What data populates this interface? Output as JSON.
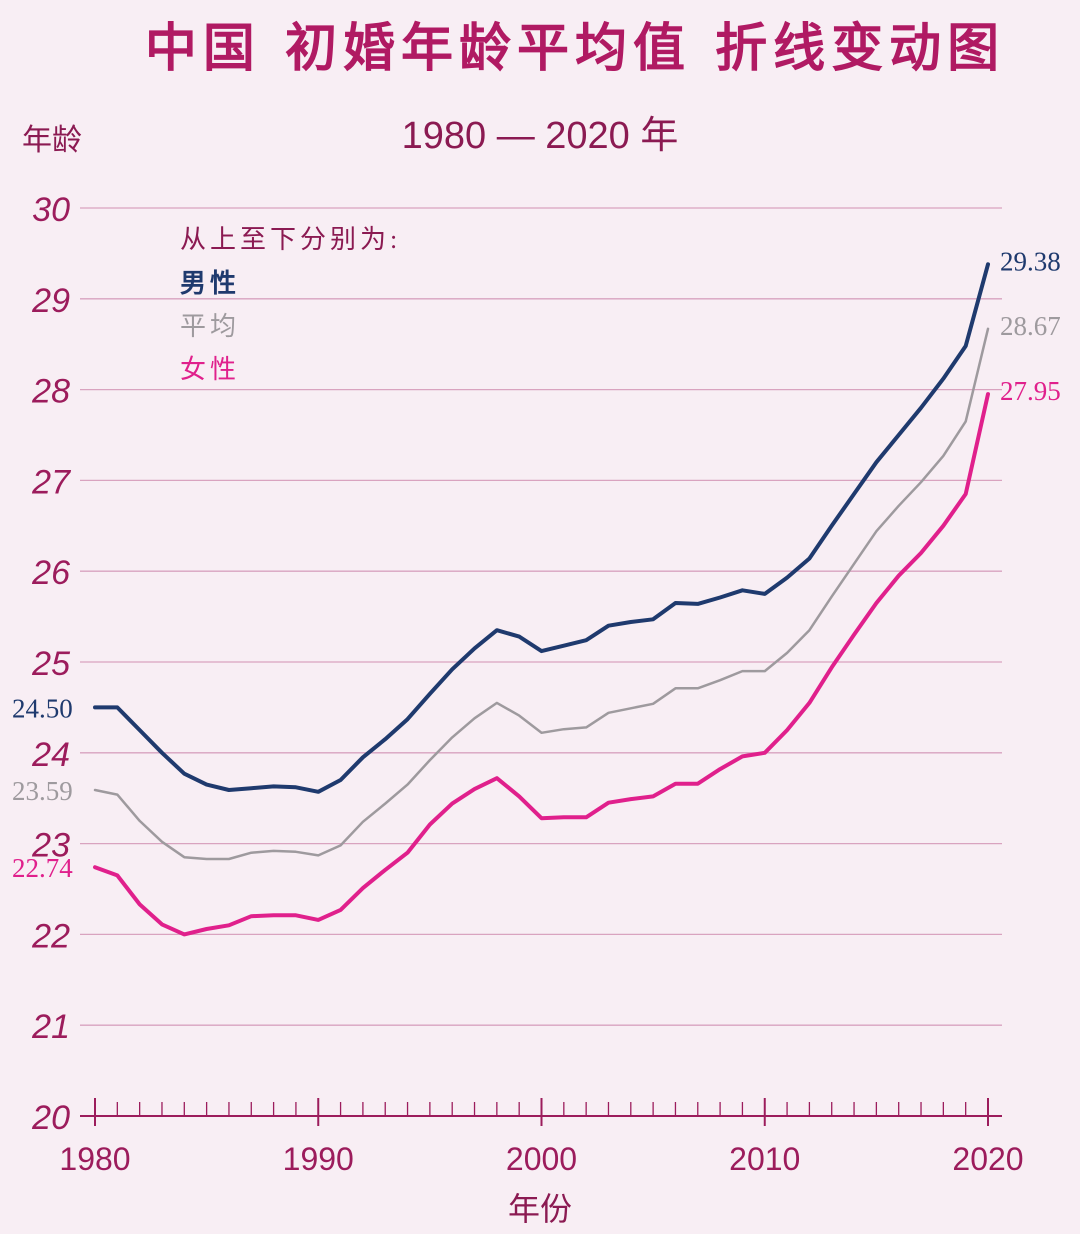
{
  "chart_data": {
    "type": "line",
    "title": "中国 初婚年龄平均值 折线变动图",
    "subtitle": "1980 — 2020 年",
    "ylabel": "年龄",
    "xlabel": "年份",
    "ylim": [
      20,
      30
    ],
    "xlim": [
      1980,
      2020
    ],
    "yticks": [
      20,
      21,
      22,
      23,
      24,
      25,
      26,
      27,
      28,
      29,
      30
    ],
    "xticks": [
      1980,
      1990,
      2000,
      2010,
      2020
    ],
    "grid": true,
    "legend": {
      "header": "从上至下分别为:",
      "placement": "top-left",
      "items": [
        "男性",
        "平均",
        "女性"
      ]
    },
    "x": [
      1980,
      1981,
      1982,
      1983,
      1984,
      1985,
      1986,
      1987,
      1988,
      1989,
      1990,
      1991,
      1992,
      1993,
      1994,
      1995,
      1996,
      1997,
      1998,
      1999,
      2000,
      2001,
      2002,
      2003,
      2004,
      2005,
      2006,
      2007,
      2008,
      2009,
      2010,
      2011,
      2012,
      2013,
      2014,
      2015,
      2016,
      2017,
      2018,
      2019,
      2020
    ],
    "series": [
      {
        "name": "男性",
        "color": "#1f3a6e",
        "start_label": "24.50",
        "end_label": "29.38",
        "values": [
          24.5,
          24.5,
          24.25,
          24.0,
          23.77,
          23.65,
          23.59,
          23.61,
          23.63,
          23.62,
          23.57,
          23.7,
          23.95,
          24.15,
          24.37,
          24.65,
          24.92,
          25.15,
          25.35,
          25.28,
          25.12,
          25.18,
          25.24,
          25.4,
          25.44,
          25.47,
          25.65,
          25.64,
          25.71,
          25.79,
          25.75,
          25.93,
          26.14,
          26.5,
          26.85,
          27.2,
          27.5,
          27.8,
          28.12,
          28.48,
          29.38
        ]
      },
      {
        "name": "平均",
        "color": "#9e9a9e",
        "start_label": "23.59",
        "end_label": "28.67",
        "values": [
          23.59,
          23.54,
          23.25,
          23.02,
          22.85,
          22.83,
          22.83,
          22.9,
          22.92,
          22.91,
          22.87,
          22.98,
          23.24,
          23.44,
          23.65,
          23.92,
          24.17,
          24.38,
          24.55,
          24.41,
          24.22,
          24.26,
          24.28,
          24.44,
          24.49,
          24.54,
          24.71,
          24.71,
          24.8,
          24.9,
          24.9,
          25.1,
          25.35,
          25.72,
          26.08,
          26.44,
          26.72,
          26.98,
          27.27,
          27.65,
          28.67
        ]
      },
      {
        "name": "女性",
        "color": "#e0208c",
        "start_label": "22.74",
        "end_label": "27.95",
        "values": [
          22.74,
          22.65,
          22.33,
          22.11,
          22.0,
          22.06,
          22.1,
          22.2,
          22.21,
          22.21,
          22.16,
          22.27,
          22.51,
          22.71,
          22.9,
          23.21,
          23.44,
          23.6,
          23.72,
          23.52,
          23.28,
          23.29,
          23.29,
          23.45,
          23.49,
          23.52,
          23.66,
          23.66,
          23.82,
          23.96,
          24.0,
          24.25,
          24.55,
          24.94,
          25.3,
          25.65,
          25.95,
          26.2,
          26.5,
          26.85,
          27.95
        ]
      }
    ]
  }
}
